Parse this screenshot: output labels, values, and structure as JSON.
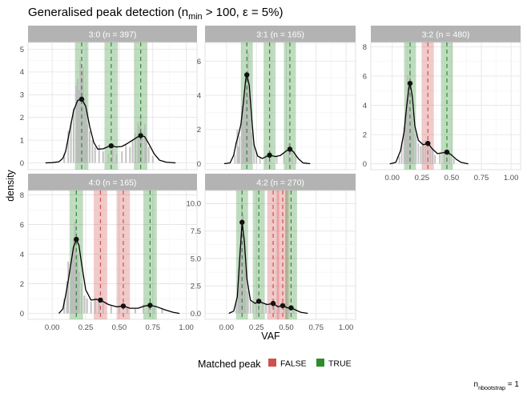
{
  "title": "Generalised peak detection (n_min > 100, ε = 5%)",
  "title_parts": {
    "prefix": "Generalised peak detection (n",
    "subscript": "min",
    "suffix": " > 100, ε = 5%)"
  },
  "caption_parts": {
    "prefix": "n",
    "subscript": "nbootstrap",
    "suffix": " = 1"
  },
  "colors": {
    "true": "#2e8b2e",
    "false": "#d05050",
    "hist": "#b8b8b8",
    "density": "#000000",
    "strip": "#b3b3b3"
  },
  "chart_data": {
    "type": "histogram",
    "xlabel": "VAF",
    "ylabel": "density",
    "legend": {
      "title": "Matched peak",
      "position": "bottom",
      "entries": [
        "FALSE",
        "TRUE"
      ]
    },
    "x_ticks": [
      "0.00",
      "0.25",
      "0.50",
      "0.75",
      "1.00"
    ],
    "xlim": [
      -0.18,
      1.08
    ],
    "grid": true,
    "panels": [
      {
        "label": "3:0 (n = 397)",
        "ylim": [
          -0.3,
          5.3
        ],
        "y_ticks": [
          "0",
          "1",
          "2",
          "3",
          "4",
          "5"
        ],
        "y_tick_values": [
          0,
          1,
          2,
          3,
          4,
          5
        ],
        "peaks": [
          {
            "x": 0.22,
            "y": 2.8,
            "matched": "TRUE"
          },
          {
            "x": 0.44,
            "y": 0.75,
            "matched": "TRUE"
          },
          {
            "x": 0.66,
            "y": 1.2,
            "matched": "TRUE"
          }
        ],
        "density": [
          [
            -0.05,
            0
          ],
          [
            0,
            0.01
          ],
          [
            0.05,
            0.05
          ],
          [
            0.08,
            0.2
          ],
          [
            0.1,
            0.5
          ],
          [
            0.13,
            1.4
          ],
          [
            0.16,
            2.3
          ],
          [
            0.19,
            2.75
          ],
          [
            0.22,
            2.8
          ],
          [
            0.25,
            2.5
          ],
          [
            0.28,
            1.6
          ],
          [
            0.31,
            0.9
          ],
          [
            0.34,
            0.6
          ],
          [
            0.38,
            0.62
          ],
          [
            0.42,
            0.72
          ],
          [
            0.44,
            0.75
          ],
          [
            0.48,
            0.7
          ],
          [
            0.52,
            0.72
          ],
          [
            0.56,
            0.85
          ],
          [
            0.6,
            1.0
          ],
          [
            0.64,
            1.15
          ],
          [
            0.66,
            1.2
          ],
          [
            0.69,
            1.15
          ],
          [
            0.72,
            0.85
          ],
          [
            0.76,
            0.4
          ],
          [
            0.8,
            0.12
          ],
          [
            0.85,
            0.03
          ],
          [
            0.92,
            0
          ]
        ],
        "histogram": [
          [
            0.09,
            0.4
          ],
          [
            0.12,
            1.4
          ],
          [
            0.14,
            1.8
          ],
          [
            0.16,
            2.4
          ],
          [
            0.18,
            3.4
          ],
          [
            0.19,
            3.7
          ],
          [
            0.2,
            3.2
          ],
          [
            0.21,
            4.5
          ],
          [
            0.22,
            3.8
          ],
          [
            0.23,
            4.2
          ],
          [
            0.24,
            2.8
          ],
          [
            0.25,
            2.2
          ],
          [
            0.26,
            1.7
          ],
          [
            0.28,
            1.4
          ],
          [
            0.3,
            1.0
          ],
          [
            0.32,
            0.7
          ],
          [
            0.35,
            0.8
          ],
          [
            0.38,
            0.5
          ],
          [
            0.42,
            0.4
          ],
          [
            0.45,
            0.6
          ],
          [
            0.48,
            0.4
          ],
          [
            0.52,
            0.5
          ],
          [
            0.55,
            0.8
          ],
          [
            0.58,
            0.7
          ],
          [
            0.6,
            1.0
          ],
          [
            0.62,
            1.3
          ],
          [
            0.64,
            1.8
          ],
          [
            0.65,
            1.6
          ],
          [
            0.66,
            2.0
          ],
          [
            0.67,
            1.4
          ],
          [
            0.69,
            1.7
          ],
          [
            0.7,
            1.0
          ],
          [
            0.72,
            0.7
          ],
          [
            0.75,
            0.3
          ]
        ]
      },
      {
        "label": "3:1 (n = 165)",
        "ylim": [
          -0.35,
          7.1
        ],
        "y_ticks": [
          "0",
          "2",
          "4",
          "6"
        ],
        "y_tick_values": [
          0,
          2,
          4,
          6
        ],
        "peaks": [
          {
            "x": 0.17,
            "y": 5.2,
            "matched": "TRUE"
          },
          {
            "x": 0.36,
            "y": 0.5,
            "matched": "TRUE"
          },
          {
            "x": 0.53,
            "y": 0.85,
            "matched": "TRUE"
          }
        ],
        "density": [
          [
            -0.02,
            0
          ],
          [
            0.03,
            0.05
          ],
          [
            0.06,
            0.5
          ],
          [
            0.08,
            1.2
          ],
          [
            0.1,
            1.7
          ],
          [
            0.12,
            2.3
          ],
          [
            0.14,
            3.5
          ],
          [
            0.16,
            4.9
          ],
          [
            0.17,
            5.2
          ],
          [
            0.19,
            4.6
          ],
          [
            0.21,
            2.7
          ],
          [
            0.23,
            1.1
          ],
          [
            0.26,
            0.45
          ],
          [
            0.3,
            0.3
          ],
          [
            0.34,
            0.45
          ],
          [
            0.36,
            0.5
          ],
          [
            0.41,
            0.42
          ],
          [
            0.45,
            0.48
          ],
          [
            0.5,
            0.75
          ],
          [
            0.53,
            0.85
          ],
          [
            0.56,
            0.7
          ],
          [
            0.6,
            0.3
          ],
          [
            0.64,
            0.05
          ],
          [
            0.7,
            0
          ]
        ],
        "histogram": [
          [
            0.07,
            0.5
          ],
          [
            0.09,
            2.0
          ],
          [
            0.1,
            1.0
          ],
          [
            0.11,
            1.6
          ],
          [
            0.13,
            3.4
          ],
          [
            0.14,
            3.2
          ],
          [
            0.15,
            3.9
          ],
          [
            0.16,
            5.2
          ],
          [
            0.17,
            5.0
          ],
          [
            0.18,
            6.5
          ],
          [
            0.19,
            4.0
          ],
          [
            0.2,
            2.6
          ],
          [
            0.21,
            1.8
          ],
          [
            0.23,
            1.2
          ],
          [
            0.25,
            0.7
          ],
          [
            0.28,
            0.4
          ],
          [
            0.33,
            0.5
          ],
          [
            0.36,
            0.7
          ],
          [
            0.42,
            0.5
          ],
          [
            0.48,
            0.6
          ],
          [
            0.52,
            1.2
          ],
          [
            0.55,
            0.9
          ],
          [
            0.58,
            0.5
          ]
        ]
      },
      {
        "label": "3:2 (n = 480)",
        "ylim": [
          -0.4,
          8.3
        ],
        "y_ticks": [
          "0",
          "2",
          "4",
          "6",
          "8"
        ],
        "y_tick_values": [
          0,
          2,
          4,
          6,
          8
        ],
        "peaks": [
          {
            "x": 0.15,
            "y": 5.5,
            "matched": "TRUE"
          },
          {
            "x": 0.3,
            "y": 1.4,
            "matched": "FALSE"
          },
          {
            "x": 0.46,
            "y": 0.8,
            "matched": "TRUE"
          }
        ],
        "density": [
          [
            -0.02,
            0
          ],
          [
            0.03,
            0.1
          ],
          [
            0.07,
            0.9
          ],
          [
            0.1,
            2.2
          ],
          [
            0.12,
            3.8
          ],
          [
            0.14,
            5.2
          ],
          [
            0.15,
            5.5
          ],
          [
            0.17,
            4.6
          ],
          [
            0.19,
            2.6
          ],
          [
            0.22,
            1.6
          ],
          [
            0.26,
            1.3
          ],
          [
            0.3,
            1.4
          ],
          [
            0.34,
            1.0
          ],
          [
            0.38,
            0.7
          ],
          [
            0.42,
            0.75
          ],
          [
            0.46,
            0.8
          ],
          [
            0.5,
            0.6
          ],
          [
            0.54,
            0.3
          ],
          [
            0.58,
            0.1
          ],
          [
            0.64,
            0
          ]
        ],
        "histogram": [
          [
            0.06,
            0.5
          ],
          [
            0.08,
            1.5
          ],
          [
            0.1,
            2.5
          ],
          [
            0.11,
            3.5
          ],
          [
            0.12,
            4.5
          ],
          [
            0.13,
            6.0
          ],
          [
            0.14,
            5.5
          ],
          [
            0.15,
            6.5
          ],
          [
            0.16,
            4.8
          ],
          [
            0.17,
            3.5
          ],
          [
            0.18,
            2.5
          ],
          [
            0.2,
            2.0
          ],
          [
            0.22,
            1.4
          ],
          [
            0.24,
            1.2
          ],
          [
            0.26,
            1.5
          ],
          [
            0.28,
            1.6
          ],
          [
            0.3,
            1.5
          ],
          [
            0.32,
            1.1
          ],
          [
            0.34,
            1.0
          ],
          [
            0.36,
            0.6
          ],
          [
            0.4,
            0.7
          ],
          [
            0.44,
            0.9
          ],
          [
            0.46,
            1.1
          ],
          [
            0.48,
            0.8
          ],
          [
            0.52,
            0.4
          ]
        ]
      },
      {
        "label": "4:0 (n = 165)",
        "ylim": [
          -0.4,
          8.3
        ],
        "y_ticks": [
          "0",
          "2",
          "4",
          "6",
          "8"
        ],
        "y_tick_values": [
          0,
          2,
          4,
          6,
          8
        ],
        "peaks": [
          {
            "x": 0.18,
            "y": 5.0,
            "matched": "TRUE"
          },
          {
            "x": 0.36,
            "y": 0.9,
            "matched": "FALSE"
          },
          {
            "x": 0.53,
            "y": 0.5,
            "matched": "FALSE"
          },
          {
            "x": 0.73,
            "y": 0.55,
            "matched": "TRUE"
          }
        ],
        "density": [
          [
            0.05,
            0
          ],
          [
            0.08,
            0.3
          ],
          [
            0.1,
            1.2
          ],
          [
            0.12,
            2.2
          ],
          [
            0.14,
            3.4
          ],
          [
            0.16,
            4.5
          ],
          [
            0.18,
            5.0
          ],
          [
            0.2,
            4.6
          ],
          [
            0.22,
            3.3
          ],
          [
            0.25,
            1.6
          ],
          [
            0.29,
            0.9
          ],
          [
            0.33,
            0.95
          ],
          [
            0.36,
            0.9
          ],
          [
            0.42,
            0.6
          ],
          [
            0.48,
            0.45
          ],
          [
            0.53,
            0.5
          ],
          [
            0.58,
            0.35
          ],
          [
            0.64,
            0.35
          ],
          [
            0.69,
            0.5
          ],
          [
            0.73,
            0.55
          ],
          [
            0.78,
            0.45
          ],
          [
            0.84,
            0.25
          ],
          [
            0.9,
            0.08
          ],
          [
            0.95,
            0
          ]
        ],
        "histogram": [
          [
            0.09,
            1.0
          ],
          [
            0.11,
            2.2
          ],
          [
            0.12,
            3.5
          ],
          [
            0.14,
            3.0
          ],
          [
            0.15,
            4.5
          ],
          [
            0.16,
            5.0
          ],
          [
            0.17,
            6.2
          ],
          [
            0.18,
            5.5
          ],
          [
            0.19,
            4.0
          ],
          [
            0.2,
            2.8
          ],
          [
            0.22,
            2.0
          ],
          [
            0.24,
            1.2
          ],
          [
            0.26,
            1.0
          ],
          [
            0.29,
            0.8
          ],
          [
            0.32,
            1.1
          ],
          [
            0.35,
            0.9
          ],
          [
            0.38,
            0.8
          ],
          [
            0.44,
            0.5
          ],
          [
            0.5,
            0.5
          ],
          [
            0.56,
            0.4
          ],
          [
            0.62,
            0.3
          ],
          [
            0.68,
            0.6
          ],
          [
            0.72,
            0.5
          ],
          [
            0.76,
            0.4
          ],
          [
            0.82,
            0.3
          ]
        ]
      },
      {
        "label": "4:2 (n = 270)",
        "ylim": [
          -0.55,
          11.2
        ],
        "y_ticks": [
          "0.0",
          "2.5",
          "5.0",
          "7.5",
          "10.0"
        ],
        "y_tick_values": [
          0,
          2.5,
          5,
          7.5,
          10
        ],
        "peaks": [
          {
            "x": 0.13,
            "y": 8.3,
            "matched": "TRUE"
          },
          {
            "x": 0.27,
            "y": 1.1,
            "matched": "TRUE"
          },
          {
            "x": 0.39,
            "y": 0.9,
            "matched": "FALSE"
          },
          {
            "x": 0.47,
            "y": 0.7,
            "matched": "FALSE"
          },
          {
            "x": 0.54,
            "y": 0.5,
            "matched": "TRUE"
          }
        ],
        "density": [
          [
            0.02,
            0
          ],
          [
            0.06,
            0.2
          ],
          [
            0.09,
            1.5
          ],
          [
            0.11,
            5.0
          ],
          [
            0.13,
            8.3
          ],
          [
            0.15,
            6.5
          ],
          [
            0.17,
            3.2
          ],
          [
            0.2,
            1.2
          ],
          [
            0.24,
            0.9
          ],
          [
            0.27,
            1.1
          ],
          [
            0.3,
            0.95
          ],
          [
            0.34,
            0.8
          ],
          [
            0.39,
            0.9
          ],
          [
            0.43,
            0.6
          ],
          [
            0.47,
            0.7
          ],
          [
            0.51,
            0.5
          ],
          [
            0.54,
            0.5
          ],
          [
            0.58,
            0.3
          ],
          [
            0.62,
            0.1
          ],
          [
            0.68,
            0
          ]
        ],
        "histogram": [
          [
            0.08,
            1.0
          ],
          [
            0.1,
            3.5
          ],
          [
            0.11,
            6.0
          ],
          [
            0.12,
            8.0
          ],
          [
            0.13,
            10.2
          ],
          [
            0.14,
            9.0
          ],
          [
            0.15,
            7.0
          ],
          [
            0.16,
            4.0
          ],
          [
            0.18,
            2.0
          ],
          [
            0.2,
            1.3
          ],
          [
            0.22,
            1.0
          ],
          [
            0.25,
            1.4
          ],
          [
            0.27,
            1.6
          ],
          [
            0.3,
            1.0
          ],
          [
            0.33,
            0.9
          ],
          [
            0.36,
            1.0
          ],
          [
            0.4,
            1.1
          ],
          [
            0.44,
            0.8
          ],
          [
            0.48,
            0.9
          ],
          [
            0.52,
            0.6
          ],
          [
            0.56,
            0.5
          ]
        ]
      }
    ]
  }
}
